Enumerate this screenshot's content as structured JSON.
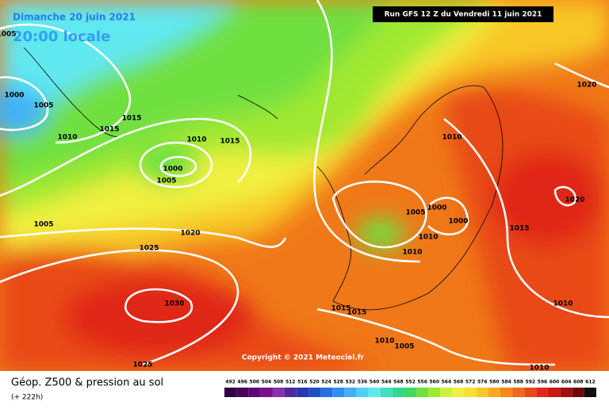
{
  "header": {
    "date": "Dimanche 20 juin 2021",
    "time": "20:00 locale",
    "run": "Run GFS 12 Z du Vendredi 11 juin 2021"
  },
  "isobar_labels": [
    1005,
    1000,
    1005,
    1010,
    1015,
    1015,
    1010,
    1015,
    1000,
    1005,
    1005,
    1020,
    1025,
    1030,
    1025,
    1020,
    1010,
    1020,
    1005,
    1000,
    1000,
    1015,
    1010,
    1010,
    1015,
    1015,
    1010,
    1005,
    1010,
    1010
  ],
  "copyright": "Copyright © 2021 Meteociel.fr",
  "footer": {
    "title": "Géop. Z500 & pression au sol",
    "lead": "(+ 222h)"
  },
  "scale": {
    "values": [
      492,
      496,
      500,
      504,
      508,
      512,
      516,
      520,
      524,
      528,
      532,
      536,
      540,
      544,
      548,
      552,
      556,
      560,
      564,
      568,
      572,
      576,
      580,
      584,
      588,
      592,
      596,
      600,
      604,
      608,
      612
    ],
    "colors": [
      "#300040",
      "#48005a",
      "#600078",
      "#7a1090",
      "#8a30a8",
      "#5028a0",
      "#2838b0",
      "#2050c8",
      "#2870e0",
      "#3090f0",
      "#40b0f8",
      "#50d0f8",
      "#60e8f0",
      "#40e0c0",
      "#30d890",
      "#40d860",
      "#70e040",
      "#a0e830",
      "#d0f040",
      "#f0f040",
      "#f8e030",
      "#f8c828",
      "#f8a820",
      "#f88818",
      "#f06818",
      "#e84818",
      "#e02818",
      "#c81818",
      "#a01010",
      "#700808",
      "#101010"
    ]
  }
}
